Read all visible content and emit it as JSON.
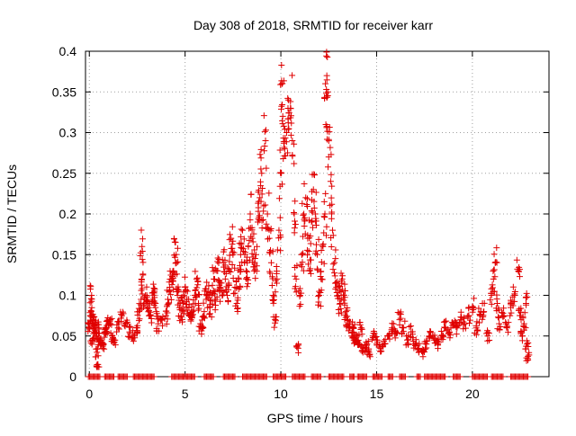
{
  "chart_data": {
    "type": "scatter",
    "title": "Day 308 of 2018, SRMTID for receiver karr",
    "xlabel": "GPS time / hours",
    "ylabel": "SRMTID / TECUs",
    "xlim": [
      -0.2,
      24
    ],
    "ylim": [
      0,
      0.4
    ],
    "xticks": [
      0,
      5,
      10,
      15,
      20
    ],
    "xtick_labels": [
      "0",
      "5",
      "10",
      "15",
      "20"
    ],
    "yticks": [
      0,
      0.05,
      0.1,
      0.15,
      0.2,
      0.25,
      0.3,
      0.35,
      0.4
    ],
    "ytick_labels": [
      "0",
      "0.05",
      "0.1",
      "0.15",
      "0.2",
      "0.25",
      "0.3",
      "0.35",
      "0.4"
    ],
    "grid": true,
    "marker": "+",
    "color": "#e00000",
    "series": [
      {
        "name": "SRMTID",
        "points": [
          [
            0.0,
            0.06
          ],
          [
            0.05,
            0.075
          ],
          [
            0.1,
            0.08
          ],
          [
            0.12,
            0.1
          ],
          [
            0.15,
            0.045
          ],
          [
            0.2,
            0.07
          ],
          [
            0.25,
            0.055
          ],
          [
            0.3,
            0.065
          ],
          [
            0.35,
            0.05
          ],
          [
            0.4,
            0.03
          ],
          [
            0.45,
            0.015
          ],
          [
            0.5,
            0.06
          ],
          [
            0.55,
            0.045
          ],
          [
            0.6,
            0.04
          ],
          [
            0.7,
            0.035
          ],
          [
            0.8,
            0.055
          ],
          [
            0.9,
            0.06
          ],
          [
            1.0,
            0.065
          ],
          [
            1.1,
            0.07
          ],
          [
            1.2,
            0.05
          ],
          [
            1.3,
            0.045
          ],
          [
            1.5,
            0.06
          ],
          [
            1.7,
            0.075
          ],
          [
            1.9,
            0.065
          ],
          [
            2.1,
            0.055
          ],
          [
            2.3,
            0.05
          ],
          [
            2.5,
            0.06
          ],
          [
            2.6,
            0.08
          ],
          [
            2.7,
            0.095
          ],
          [
            2.75,
            0.16
          ],
          [
            2.8,
            0.125
          ],
          [
            2.9,
            0.09
          ],
          [
            3.0,
            0.1
          ],
          [
            3.1,
            0.085
          ],
          [
            3.2,
            0.075
          ],
          [
            3.3,
            0.095
          ],
          [
            3.4,
            0.105
          ],
          [
            3.5,
            0.08
          ],
          [
            3.6,
            0.065
          ],
          [
            3.8,
            0.07
          ],
          [
            4.0,
            0.075
          ],
          [
            4.1,
            0.095
          ],
          [
            4.2,
            0.11
          ],
          [
            4.3,
            0.12
          ],
          [
            4.4,
            0.13
          ],
          [
            4.5,
            0.165
          ],
          [
            4.55,
            0.14
          ],
          [
            4.6,
            0.1
          ],
          [
            4.7,
            0.085
          ],
          [
            4.8,
            0.075
          ],
          [
            4.9,
            0.09
          ],
          [
            5.0,
            0.11
          ],
          [
            5.1,
            0.095
          ],
          [
            5.2,
            0.085
          ],
          [
            5.3,
            0.07
          ],
          [
            5.4,
            0.08
          ],
          [
            5.5,
            0.1
          ],
          [
            5.6,
            0.12
          ],
          [
            5.7,
            0.09
          ],
          [
            5.8,
            0.065
          ],
          [
            5.9,
            0.06
          ],
          [
            6.0,
            0.08
          ],
          [
            6.1,
            0.095
          ],
          [
            6.2,
            0.105
          ],
          [
            6.3,
            0.085
          ],
          [
            6.4,
            0.1
          ],
          [
            6.5,
            0.12
          ],
          [
            6.6,
            0.095
          ],
          [
            6.7,
            0.13
          ],
          [
            6.8,
            0.105
          ],
          [
            6.9,
            0.115
          ],
          [
            7.0,
            0.14
          ],
          [
            7.1,
            0.12
          ],
          [
            7.2,
            0.1
          ],
          [
            7.3,
            0.13
          ],
          [
            7.4,
            0.17
          ],
          [
            7.5,
            0.15
          ],
          [
            7.6,
            0.11
          ],
          [
            7.7,
            0.09
          ],
          [
            7.8,
            0.12
          ],
          [
            7.9,
            0.15
          ],
          [
            8.0,
            0.18
          ],
          [
            8.1,
            0.14
          ],
          [
            8.2,
            0.12
          ],
          [
            8.3,
            0.16
          ],
          [
            8.4,
            0.2
          ],
          [
            8.5,
            0.17
          ],
          [
            8.6,
            0.13
          ],
          [
            8.7,
            0.15
          ],
          [
            8.8,
            0.19
          ],
          [
            8.9,
            0.22
          ],
          [
            9.0,
            0.25
          ],
          [
            9.1,
            0.21
          ],
          [
            9.2,
            0.29
          ],
          [
            9.3,
            0.2
          ],
          [
            9.4,
            0.17
          ],
          [
            9.5,
            0.14
          ],
          [
            9.6,
            0.1
          ],
          [
            9.7,
            0.07
          ],
          [
            9.8,
            0.12
          ],
          [
            9.9,
            0.18
          ],
          [
            10.0,
            0.25
          ],
          [
            10.05,
            0.36
          ],
          [
            10.1,
            0.32
          ],
          [
            10.2,
            0.28
          ],
          [
            10.3,
            0.3
          ],
          [
            10.4,
            0.34
          ],
          [
            10.5,
            0.33
          ],
          [
            10.6,
            0.29
          ],
          [
            10.7,
            0.2
          ],
          [
            10.8,
            0.12
          ],
          [
            10.9,
            0.035
          ],
          [
            11.0,
            0.1
          ],
          [
            11.1,
            0.15
          ],
          [
            11.2,
            0.2
          ],
          [
            11.3,
            0.22
          ],
          [
            11.4,
            0.17
          ],
          [
            11.5,
            0.13
          ],
          [
            11.6,
            0.19
          ],
          [
            11.7,
            0.23
          ],
          [
            11.8,
            0.2
          ],
          [
            11.9,
            0.15
          ],
          [
            12.0,
            0.1
          ],
          [
            12.1,
            0.12
          ],
          [
            12.2,
            0.16
          ],
          [
            12.3,
            0.2
          ],
          [
            12.35,
            0.31
          ],
          [
            12.4,
            0.37
          ],
          [
            12.45,
            0.35
          ],
          [
            12.5,
            0.27
          ],
          [
            12.6,
            0.24
          ],
          [
            12.7,
            0.18
          ],
          [
            12.8,
            0.14
          ],
          [
            12.9,
            0.11
          ],
          [
            13.0,
            0.1
          ],
          [
            13.1,
            0.09
          ],
          [
            13.2,
            0.12
          ],
          [
            13.3,
            0.1
          ],
          [
            13.4,
            0.08
          ],
          [
            13.5,
            0.07
          ],
          [
            13.6,
            0.06
          ],
          [
            13.7,
            0.05
          ],
          [
            13.8,
            0.06
          ],
          [
            13.9,
            0.045
          ],
          [
            14.0,
            0.05
          ],
          [
            14.1,
            0.04
          ],
          [
            14.2,
            0.06
          ],
          [
            14.3,
            0.035
          ],
          [
            14.5,
            0.04
          ],
          [
            14.6,
            0.03
          ],
          [
            14.8,
            0.05
          ],
          [
            15.0,
            0.045
          ],
          [
            15.2,
            0.035
          ],
          [
            15.4,
            0.04
          ],
          [
            15.6,
            0.05
          ],
          [
            15.8,
            0.06
          ],
          [
            16.0,
            0.055
          ],
          [
            16.2,
            0.07
          ],
          [
            16.4,
            0.06
          ],
          [
            16.6,
            0.045
          ],
          [
            16.8,
            0.055
          ],
          [
            17.0,
            0.04
          ],
          [
            17.2,
            0.035
          ],
          [
            17.4,
            0.03
          ],
          [
            17.6,
            0.04
          ],
          [
            17.8,
            0.05
          ],
          [
            18.0,
            0.045
          ],
          [
            18.2,
            0.04
          ],
          [
            18.4,
            0.05
          ],
          [
            18.6,
            0.06
          ],
          [
            18.8,
            0.055
          ],
          [
            19.0,
            0.065
          ],
          [
            19.2,
            0.06
          ],
          [
            19.4,
            0.07
          ],
          [
            19.6,
            0.065
          ],
          [
            19.8,
            0.075
          ],
          [
            20.0,
            0.085
          ],
          [
            20.2,
            0.06
          ],
          [
            20.4,
            0.075
          ],
          [
            20.6,
            0.08
          ],
          [
            20.8,
            0.05
          ],
          [
            21.0,
            0.1
          ],
          [
            21.1,
            0.12
          ],
          [
            21.2,
            0.14
          ],
          [
            21.3,
            0.09
          ],
          [
            21.4,
            0.065
          ],
          [
            21.6,
            0.075
          ],
          [
            21.8,
            0.06
          ],
          [
            22.0,
            0.085
          ],
          [
            22.2,
            0.1
          ],
          [
            22.4,
            0.13
          ],
          [
            22.5,
            0.075
          ],
          [
            22.6,
            0.05
          ],
          [
            22.7,
            0.065
          ],
          [
            22.8,
            0.09
          ],
          [
            22.85,
            0.04
          ],
          [
            22.9,
            0.025
          ]
        ]
      }
    ],
    "zero_rows": [
      [
        -0.05,
        0.6
      ],
      [
        0.8,
        1.3
      ],
      [
        1.5,
        2.0
      ],
      [
        2.3,
        3.4
      ],
      [
        4.3,
        5.5
      ],
      [
        6.0,
        6.5
      ],
      [
        7.0,
        7.6
      ],
      [
        8.0,
        9.3
      ],
      [
        9.6,
        10.3
      ],
      [
        10.6,
        11.3
      ],
      [
        11.6,
        12.1
      ],
      [
        12.5,
        13.3
      ],
      [
        13.6,
        13.9
      ],
      [
        14.0,
        14.5
      ],
      [
        14.8,
        15.3
      ],
      [
        15.6,
        15.9
      ],
      [
        16.2,
        16.5
      ],
      [
        17.1,
        17.3
      ],
      [
        17.5,
        18.6
      ],
      [
        19.0,
        19.4
      ],
      [
        20.0,
        20.8
      ],
      [
        21.0,
        21.6
      ],
      [
        22.0,
        22.9
      ]
    ]
  }
}
